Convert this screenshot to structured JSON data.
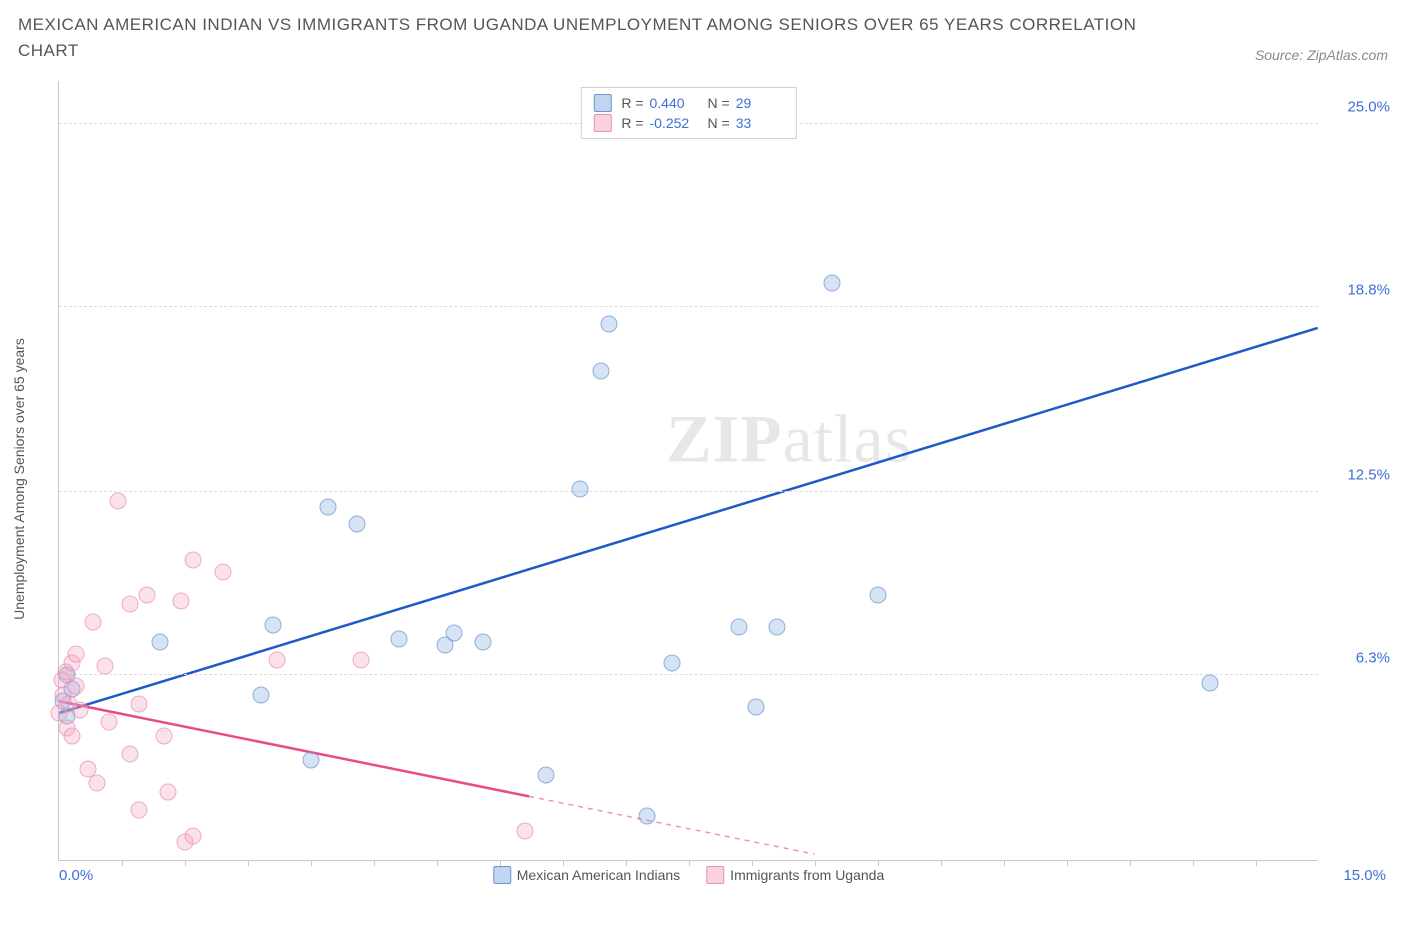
{
  "title": "MEXICAN AMERICAN INDIAN VS IMMIGRANTS FROM UGANDA UNEMPLOYMENT AMONG SENIORS OVER 65 YEARS CORRELATION CHART",
  "source": "Source: ZipAtlas.com",
  "watermark_bold": "ZIP",
  "watermark_light": "atlas",
  "chart": {
    "type": "scatter",
    "y_label": "Unemployment Among Seniors over 65 years",
    "xlim": [
      0,
      15.0
    ],
    "ylim": [
      0,
      26.5
    ],
    "x_min_label": "0.0%",
    "x_max_label": "15.0%",
    "y_ticks": [
      {
        "v": 6.3,
        "label": "6.3%"
      },
      {
        "v": 12.5,
        "label": "12.5%"
      },
      {
        "v": 18.8,
        "label": "18.8%"
      },
      {
        "v": 25.0,
        "label": "25.0%"
      }
    ],
    "x_tick_positions": [
      0.75,
      1.5,
      2.25,
      3.0,
      3.75,
      4.5,
      5.25,
      6.0,
      6.75,
      7.5,
      8.25,
      9.0,
      9.75,
      10.5,
      11.25,
      12.0,
      12.75,
      13.5,
      14.25
    ],
    "grid_color": "#dcdcdc",
    "axis_color": "#c8c8c8",
    "background_color": "#ffffff",
    "series": [
      {
        "name": "Mexican American Indians",
        "color_fill": "rgba(131,170,225,0.45)",
        "color_stroke": "#6a95d0",
        "trend_color": "#1f58c7",
        "marker_size": 17,
        "R": "0.440",
        "N": "29",
        "trend": {
          "x1": 0.0,
          "y1": 5.0,
          "x2": 15.0,
          "y2": 18.1,
          "dashed_from_x": null
        },
        "points": [
          {
            "x": 0.05,
            "y": 5.4
          },
          {
            "x": 0.1,
            "y": 4.9
          },
          {
            "x": 0.1,
            "y": 6.3
          },
          {
            "x": 0.15,
            "y": 5.8
          },
          {
            "x": 1.2,
            "y": 7.4
          },
          {
            "x": 2.4,
            "y": 5.6
          },
          {
            "x": 2.55,
            "y": 8.0
          },
          {
            "x": 3.0,
            "y": 3.4
          },
          {
            "x": 3.2,
            "y": 12.0
          },
          {
            "x": 3.55,
            "y": 11.4
          },
          {
            "x": 4.05,
            "y": 7.5
          },
          {
            "x": 4.6,
            "y": 7.3
          },
          {
            "x": 4.7,
            "y": 7.7
          },
          {
            "x": 5.05,
            "y": 7.4
          },
          {
            "x": 5.8,
            "y": 2.9
          },
          {
            "x": 6.2,
            "y": 12.6
          },
          {
            "x": 6.45,
            "y": 16.6
          },
          {
            "x": 6.55,
            "y": 18.2
          },
          {
            "x": 7.0,
            "y": 1.5
          },
          {
            "x": 7.3,
            "y": 6.7
          },
          {
            "x": 8.1,
            "y": 7.9
          },
          {
            "x": 8.3,
            "y": 5.2
          },
          {
            "x": 8.55,
            "y": 7.9
          },
          {
            "x": 9.2,
            "y": 19.6
          },
          {
            "x": 9.75,
            "y": 9.0
          },
          {
            "x": 13.7,
            "y": 6.0
          }
        ]
      },
      {
        "name": "Immigrants from Uganda",
        "color_fill": "rgba(244,166,193,0.45)",
        "color_stroke": "#e98fb0",
        "trend_color": "#e94b86",
        "marker_size": 17,
        "R": "-0.252",
        "N": "33",
        "trend": {
          "x1": 0.0,
          "y1": 5.4,
          "x2": 9.0,
          "y2": 0.2,
          "dashed_from_x": 5.6
        },
        "points": [
          {
            "x": 0.0,
            "y": 5.0
          },
          {
            "x": 0.03,
            "y": 6.1
          },
          {
            "x": 0.05,
            "y": 5.6
          },
          {
            "x": 0.08,
            "y": 6.4
          },
          {
            "x": 0.1,
            "y": 4.5
          },
          {
            "x": 0.12,
            "y": 5.3
          },
          {
            "x": 0.15,
            "y": 6.7
          },
          {
            "x": 0.15,
            "y": 4.2
          },
          {
            "x": 0.2,
            "y": 5.9
          },
          {
            "x": 0.2,
            "y": 7.0
          },
          {
            "x": 0.25,
            "y": 5.1
          },
          {
            "x": 0.35,
            "y": 3.1
          },
          {
            "x": 0.4,
            "y": 8.1
          },
          {
            "x": 0.45,
            "y": 2.6
          },
          {
            "x": 0.55,
            "y": 6.6
          },
          {
            "x": 0.6,
            "y": 4.7
          },
          {
            "x": 0.7,
            "y": 12.2
          },
          {
            "x": 0.85,
            "y": 8.7
          },
          {
            "x": 0.85,
            "y": 3.6
          },
          {
            "x": 0.95,
            "y": 5.3
          },
          {
            "x": 0.95,
            "y": 1.7
          },
          {
            "x": 1.05,
            "y": 9.0
          },
          {
            "x": 1.25,
            "y": 4.2
          },
          {
            "x": 1.3,
            "y": 2.3
          },
          {
            "x": 1.45,
            "y": 8.8
          },
          {
            "x": 1.5,
            "y": 0.6
          },
          {
            "x": 1.6,
            "y": 10.2
          },
          {
            "x": 1.6,
            "y": 0.8
          },
          {
            "x": 1.95,
            "y": 9.8
          },
          {
            "x": 2.6,
            "y": 6.8
          },
          {
            "x": 3.6,
            "y": 6.8
          },
          {
            "x": 5.55,
            "y": 1.0
          }
        ]
      }
    ],
    "legend_bottom": [
      {
        "label": "Mexican American Indians",
        "class": "blue"
      },
      {
        "label": "Immigrants from Uganda",
        "class": "pink"
      }
    ]
  }
}
